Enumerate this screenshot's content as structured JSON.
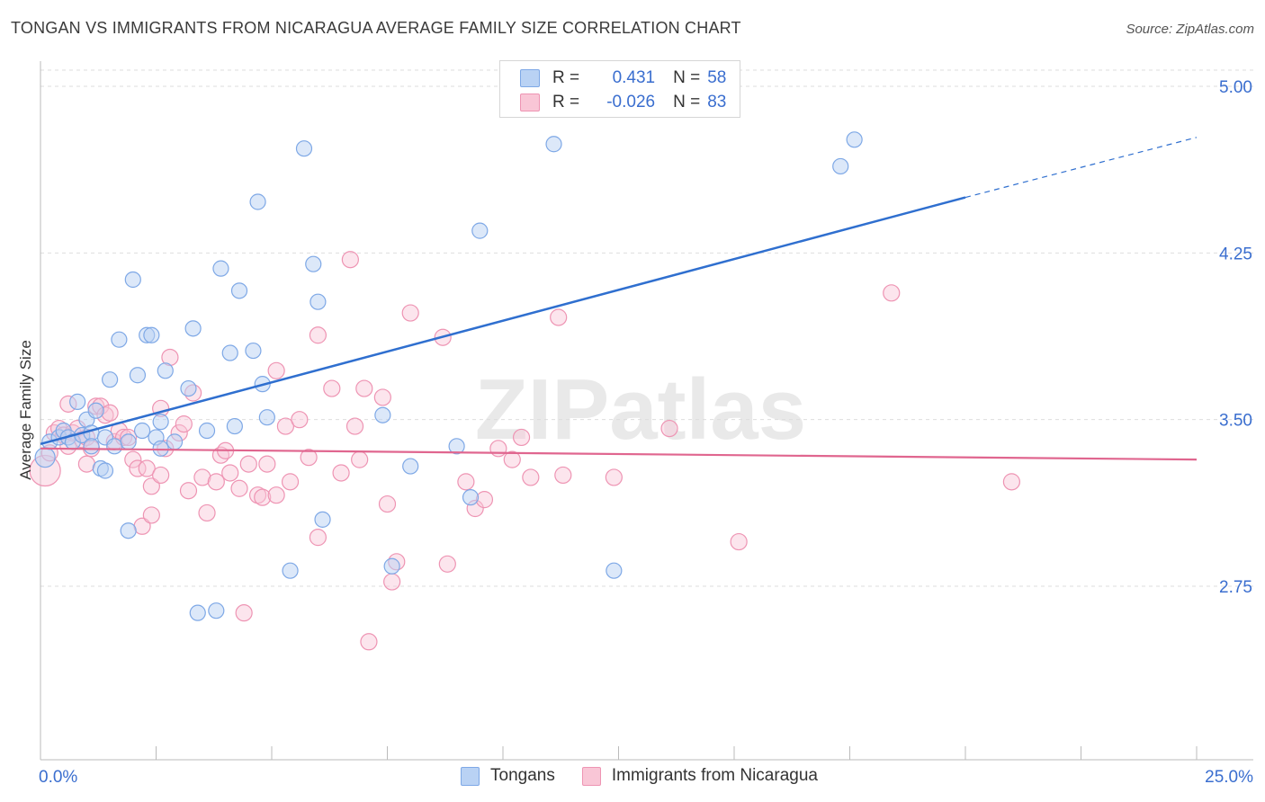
{
  "title": "TONGAN VS IMMIGRANTS FROM NICARAGUA AVERAGE FAMILY SIZE CORRELATION CHART",
  "source": "Source: ZipAtlas.com",
  "colors": {
    "tongans_fill": "#b9d2f4",
    "tongans_stroke": "#7ea8e6",
    "tongans_line": "#2f6fcf",
    "nicaragua_fill": "#f9c6d6",
    "nicaragua_stroke": "#ee94b3",
    "nicaragua_line": "#e0668f",
    "tick_label": "#3a6ecf",
    "grid": "#dddddd"
  },
  "legend": {
    "tongans": {
      "r_label": "R =",
      "r_value": "0.431",
      "n_label": "N =",
      "n_value": "58"
    },
    "nicaragua": {
      "r_label": "R =",
      "r_value": "-0.026",
      "n_label": "N =",
      "n_value": "83"
    }
  },
  "chart_data": {
    "type": "scatter",
    "title": "TONGAN VS IMMIGRANTS FROM NICARAGUA AVERAGE FAMILY SIZE CORRELATION CHART",
    "xlabel": "",
    "ylabel": "Average Family Size",
    "xlim": [
      0,
      25
    ],
    "ylim": [
      2.0,
      5.1
    ],
    "x_tick_labels": [
      "0.0%",
      "25.0%"
    ],
    "y_ticks": [
      2.75,
      3.5,
      4.25,
      5.0
    ],
    "y_tick_labels": [
      "2.75",
      "3.50",
      "4.25",
      "5.00"
    ],
    "watermark": "ZIPatlas",
    "series": [
      {
        "name": "Tongans",
        "trend": {
          "x0": 0,
          "y0": 3.39,
          "x1": 20,
          "y1": 4.5,
          "dash_to_x": 25,
          "dash_to_y": 4.77
        },
        "points": [
          [
            0.1,
            3.33
          ],
          [
            0.2,
            3.4
          ],
          [
            0.4,
            3.42
          ],
          [
            0.5,
            3.45
          ],
          [
            0.6,
            3.42
          ],
          [
            0.8,
            3.58
          ],
          [
            0.7,
            3.4
          ],
          [
            0.9,
            3.43
          ],
          [
            1.0,
            3.5
          ],
          [
            1.1,
            3.44
          ],
          [
            1.1,
            3.38
          ],
          [
            1.2,
            3.54
          ],
          [
            1.3,
            3.28
          ],
          [
            1.4,
            3.27
          ],
          [
            1.4,
            3.42
          ],
          [
            1.5,
            3.68
          ],
          [
            1.6,
            3.38
          ],
          [
            1.7,
            3.86
          ],
          [
            1.9,
            3.4
          ],
          [
            1.9,
            3.0
          ],
          [
            2.0,
            4.13
          ],
          [
            2.1,
            3.7
          ],
          [
            2.2,
            3.45
          ],
          [
            2.3,
            3.88
          ],
          [
            2.4,
            3.88
          ],
          [
            2.5,
            3.42
          ],
          [
            2.6,
            3.37
          ],
          [
            2.6,
            3.49
          ],
          [
            2.7,
            3.72
          ],
          [
            2.9,
            3.4
          ],
          [
            3.2,
            3.64
          ],
          [
            3.3,
            3.91
          ],
          [
            3.4,
            2.63
          ],
          [
            3.6,
            3.45
          ],
          [
            3.8,
            2.64
          ],
          [
            3.9,
            4.18
          ],
          [
            4.1,
            3.8
          ],
          [
            4.2,
            3.47
          ],
          [
            4.3,
            4.08
          ],
          [
            4.6,
            3.81
          ],
          [
            4.7,
            4.48
          ],
          [
            4.8,
            3.66
          ],
          [
            4.9,
            3.51
          ],
          [
            5.4,
            2.82
          ],
          [
            5.7,
            4.72
          ],
          [
            5.9,
            4.2
          ],
          [
            6.0,
            4.03
          ],
          [
            6.1,
            3.05
          ],
          [
            7.4,
            3.52
          ],
          [
            7.6,
            2.84
          ],
          [
            8.0,
            3.29
          ],
          [
            9.0,
            3.38
          ],
          [
            9.3,
            3.15
          ],
          [
            9.5,
            4.35
          ],
          [
            11.1,
            4.74
          ],
          [
            12.4,
            2.82
          ],
          [
            17.3,
            4.64
          ],
          [
            17.6,
            4.76
          ]
        ]
      },
      {
        "name": "Immigrants from Nicaragua",
        "trend": {
          "x0": 0,
          "y0": 3.37,
          "x1": 25,
          "y1": 3.32
        },
        "points": [
          [
            0.1,
            3.27
          ],
          [
            0.2,
            3.35
          ],
          [
            0.3,
            3.44
          ],
          [
            0.4,
            3.46
          ],
          [
            0.5,
            3.43
          ],
          [
            0.6,
            3.38
          ],
          [
            0.6,
            3.57
          ],
          [
            0.7,
            3.44
          ],
          [
            0.8,
            3.46
          ],
          [
            0.9,
            3.41
          ],
          [
            1.0,
            3.42
          ],
          [
            1.0,
            3.3
          ],
          [
            1.1,
            3.37
          ],
          [
            1.2,
            3.56
          ],
          [
            1.3,
            3.56
          ],
          [
            1.4,
            3.52
          ],
          [
            1.5,
            3.53
          ],
          [
            1.6,
            3.4
          ],
          [
            1.7,
            3.45
          ],
          [
            1.8,
            3.42
          ],
          [
            1.9,
            3.42
          ],
          [
            2.0,
            3.32
          ],
          [
            2.1,
            3.28
          ],
          [
            2.2,
            3.02
          ],
          [
            2.3,
            3.28
          ],
          [
            2.4,
            3.07
          ],
          [
            2.4,
            3.2
          ],
          [
            2.6,
            3.55
          ],
          [
            2.6,
            3.25
          ],
          [
            2.7,
            3.37
          ],
          [
            2.8,
            3.78
          ],
          [
            3.0,
            3.44
          ],
          [
            3.1,
            3.48
          ],
          [
            3.2,
            3.18
          ],
          [
            3.3,
            3.62
          ],
          [
            3.5,
            3.24
          ],
          [
            3.6,
            3.08
          ],
          [
            3.8,
            3.22
          ],
          [
            3.9,
            3.34
          ],
          [
            4.0,
            3.36
          ],
          [
            4.1,
            3.26
          ],
          [
            4.3,
            3.19
          ],
          [
            4.4,
            2.63
          ],
          [
            4.5,
            3.3
          ],
          [
            4.7,
            3.16
          ],
          [
            4.8,
            3.15
          ],
          [
            4.9,
            3.3
          ],
          [
            5.1,
            3.16
          ],
          [
            5.1,
            3.72
          ],
          [
            5.3,
            3.47
          ],
          [
            5.4,
            3.22
          ],
          [
            5.6,
            3.5
          ],
          [
            5.8,
            3.33
          ],
          [
            6.0,
            2.97
          ],
          [
            6.0,
            3.88
          ],
          [
            6.3,
            3.64
          ],
          [
            6.5,
            3.26
          ],
          [
            6.7,
            4.22
          ],
          [
            6.8,
            3.47
          ],
          [
            6.9,
            3.32
          ],
          [
            7.0,
            3.64
          ],
          [
            7.1,
            2.5
          ],
          [
            7.4,
            3.6
          ],
          [
            7.5,
            3.12
          ],
          [
            7.6,
            2.77
          ],
          [
            7.7,
            2.86
          ],
          [
            8.0,
            3.98
          ],
          [
            8.7,
            3.87
          ],
          [
            8.8,
            2.85
          ],
          [
            9.2,
            3.22
          ],
          [
            9.4,
            3.1
          ],
          [
            9.6,
            3.14
          ],
          [
            9.9,
            3.37
          ],
          [
            10.2,
            3.32
          ],
          [
            10.4,
            3.42
          ],
          [
            10.6,
            3.24
          ],
          [
            11.2,
            3.96
          ],
          [
            11.3,
            3.25
          ],
          [
            12.4,
            3.24
          ],
          [
            13.6,
            3.46
          ],
          [
            15.1,
            2.95
          ],
          [
            18.4,
            4.07
          ],
          [
            21.0,
            3.22
          ]
        ]
      }
    ]
  },
  "bottom_legend": [
    "Tongans",
    "Immigrants from Nicaragua"
  ]
}
